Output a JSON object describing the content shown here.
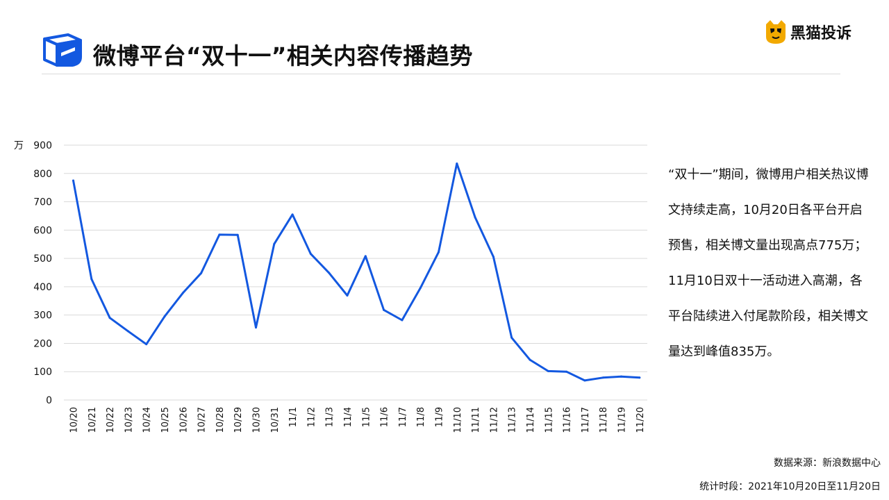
{
  "header": {
    "title": "微博平台“双十一”相关内容传播趋势",
    "brand": "黑猫投诉"
  },
  "colors": {
    "accent": "#1358E0",
    "brand_yellow": "#F2A900",
    "grid": "#d9d9d9",
    "text": "#111111"
  },
  "chart_data": {
    "type": "line",
    "title": "",
    "xlabel": "",
    "ylabel": "万",
    "ylim": [
      0,
      900
    ],
    "yticks": [
      0,
      100,
      200,
      300,
      400,
      500,
      600,
      700,
      800,
      900
    ],
    "grid": true,
    "categories": [
      "10/20",
      "10/21",
      "10/22",
      "10/23",
      "10/24",
      "10/25",
      "10/26",
      "10/27",
      "10/28",
      "10/29",
      "10/30",
      "10/31",
      "11/1",
      "11/2",
      "11/3",
      "11/4",
      "11/5",
      "11/6",
      "11/7",
      "11/8",
      "11/9",
      "11/10",
      "11/11",
      "11/12",
      "11/13",
      "11/14",
      "11/15",
      "11/16",
      "11/17",
      "11/18",
      "11/19",
      "11/20"
    ],
    "values": [
      775,
      427,
      290,
      243,
      197,
      295,
      378,
      448,
      584,
      583,
      256,
      551,
      655,
      516,
      449,
      369,
      508,
      318,
      282,
      395,
      522,
      835,
      645,
      506,
      220,
      142,
      102,
      100,
      69,
      79,
      83,
      79
    ]
  },
  "description": "“双十一”期间，微博用户相关热议博文持续走高，10月20日各平台开启预售，相关博文量出现高点775万；11月10日双十一活动进入高潮，各平台陆续进入付尾款阶段，相关博文量达到峰值835万。",
  "footer": {
    "source": "数据来源：新浪数据中心",
    "period": "统计时段：2021年10月20日至11月20日"
  }
}
